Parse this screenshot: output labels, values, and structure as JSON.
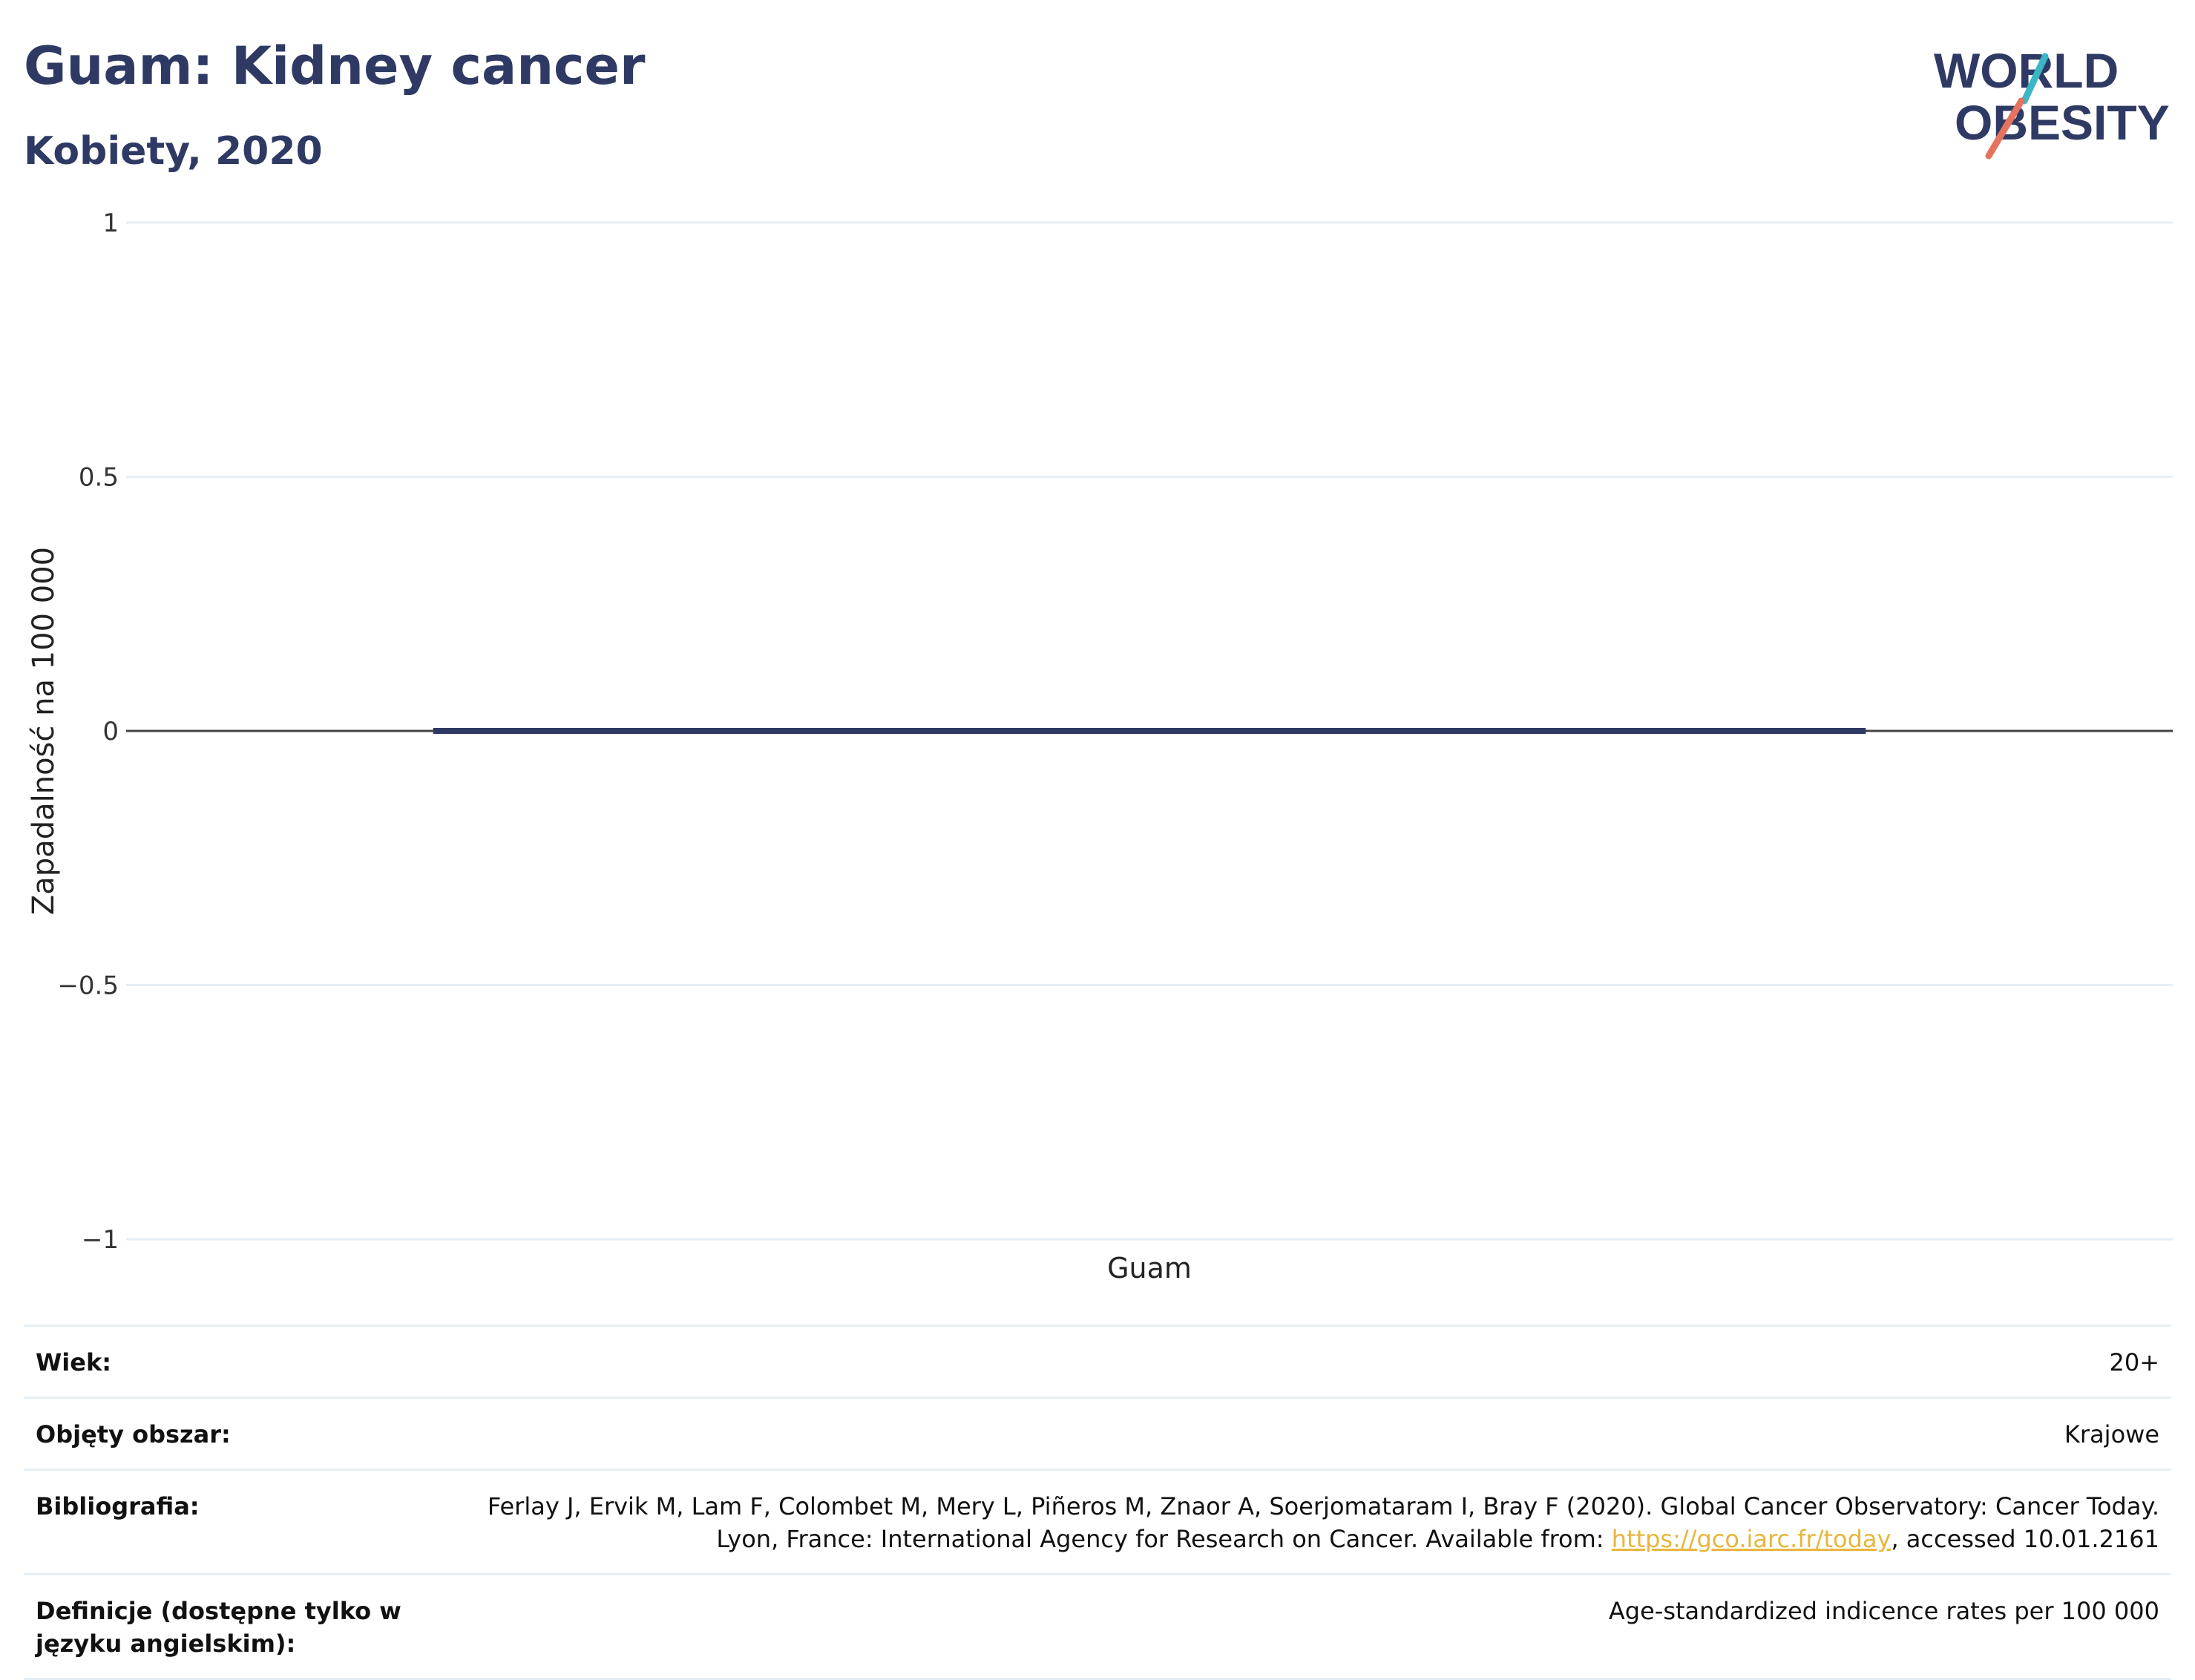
{
  "header": {
    "title": "Guam: Kidney cancer",
    "subtitle": "Kobiety, 2020",
    "logo_line1": "WORLD",
    "logo_line2": "OBESITY"
  },
  "colors": {
    "title": "#2f3a64",
    "bar": "#2f3a64",
    "grid": "#e6eef5",
    "zero_line": "#444444",
    "link": "#e8b63a",
    "logo_teal": "#3ab6c4",
    "logo_coral": "#e5735f"
  },
  "chart_data": {
    "type": "bar",
    "title": "Guam: Kidney cancer",
    "subtitle": "Kobiety, 2020",
    "categories": [
      "Guam"
    ],
    "values": [
      0
    ],
    "ylabel": "Zapadalność na 100 000",
    "xlabel": "",
    "ylim": [
      -1,
      1
    ],
    "yticks": [
      1,
      0.5,
      0,
      -0.5,
      -1
    ],
    "ytick_labels": [
      "1",
      "0.5",
      "0",
      "−0.5",
      "−1"
    ],
    "grid": true,
    "legend": "none"
  },
  "info": {
    "rows": [
      {
        "label": "Wiek:",
        "value": "20+"
      },
      {
        "label": "Objęty obszar:",
        "value": "Krajowe"
      },
      {
        "label": "Bibliografia:",
        "value_pre": "Ferlay J, Ervik M, Lam F, Colombet M, Mery L, Piñeros M, Znaor A, Soerjomataram I, Bray F (2020). Global Cancer Observatory: Cancer Today. Lyon, France: International Agency for Research on Cancer. Available from: ",
        "link_text": "https://gco.iarc.fr/today",
        "value_post": ", accessed 10.01.2161"
      },
      {
        "label": "Definicje (dostępne tylko w języku angielskim):",
        "value": "Age-standardized indicence rates per 100 000"
      }
    ]
  }
}
